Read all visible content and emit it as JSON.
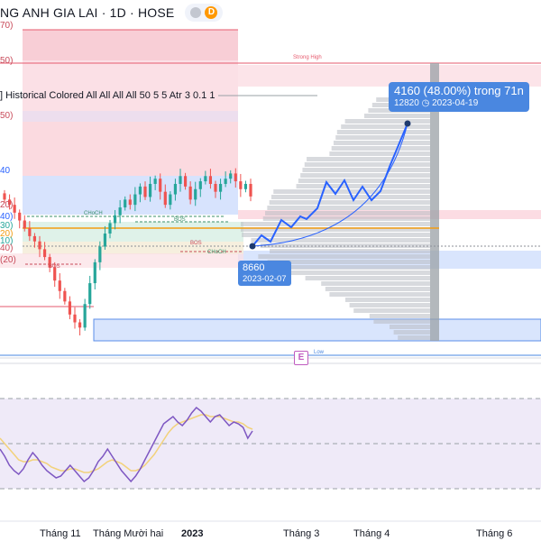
{
  "header": {
    "title": "NG ANH GIA LAI · 1D · HOSE",
    "badge_letter": "D"
  },
  "indicator": {
    "text": "] Historical Colored All All All All 50 5 5 Atr 3 0.1 1"
  },
  "axis_fragments": {
    "p70": "70)",
    "p50a": "50)",
    "p50b": "50)",
    "p40a": "40",
    "p20a": "20)",
    "p40b": "40)",
    "p30": "30)",
    "p20b": "20)",
    "p10": "10)",
    "p40c": "40)",
    "p20c": "(20)"
  },
  "annotations": {
    "strong_high": "Strong High",
    "weak_low": "Low",
    "choch_1": "CHoCH",
    "choch_2": "CHoCH",
    "bos_1": "BOS",
    "bos_2": "BOS",
    "bos_3": "BOS",
    "e_marker": "E"
  },
  "projection": {
    "main": "4160 (48.00%) trong 71n",
    "target_price": "12820",
    "target_date": "2023-04-19",
    "start_price": "8660",
    "start_date": "2023-02-07"
  },
  "time_axis": {
    "labels": [
      "Tháng 11",
      "Tháng Mười hai",
      "2023",
      "Tháng 3",
      "Tháng 4",
      "Tháng 6"
    ]
  },
  "colors": {
    "up": "#26a69a",
    "down": "#ef5350",
    "projection": "#2962ff",
    "label_bg": "#4a87e0",
    "supply_zone": "#f7c5cf",
    "demand_zone": "#c9dafc",
    "rsi_band": "#efeaf8",
    "rsi_line": "#7e57c2",
    "rsi_ma": "#f2d27a",
    "orange_line": "#f39c12"
  },
  "chart_data": [
    {
      "type": "candlestick",
      "title": "",
      "x_labels": [
        "Tháng 11",
        "Tháng Mười hai",
        "2023",
        "Tháng 3",
        "Tháng 4",
        "Tháng 6"
      ],
      "projection": {
        "from": {
          "date": "2023-02-07",
          "price": 8660
        },
        "to": {
          "date": "2023-04-19",
          "price": 12820
        },
        "change": 4160,
        "change_pct": 48.0,
        "bars": 71
      },
      "price_path": [
        8600,
        8500,
        8350,
        8200,
        8050,
        7900,
        7800,
        7650,
        7500,
        7300,
        7050,
        6850,
        6650,
        6400,
        6250,
        6150,
        6600,
        7000,
        7400,
        7700,
        7950,
        8150,
        8300,
        8450,
        8600,
        8500,
        8700,
        8850,
        8650,
        8900,
        9000,
        8750,
        8500,
        8700,
        8900,
        9050,
        8850,
        8600,
        8800,
        8950,
        9050,
        8900,
        8750,
        8900,
        9000,
        9100,
        8950,
        8800,
        8900,
        8660
      ]
    },
    {
      "type": "line",
      "title": "",
      "series": [
        {
          "values": [
            42,
            38,
            33,
            30,
            28,
            31,
            36,
            40,
            37,
            33,
            30,
            28,
            26,
            27,
            30,
            33,
            30,
            27,
            24,
            26,
            30,
            35,
            38,
            42,
            38,
            34,
            30,
            27,
            24,
            27,
            31,
            36,
            41,
            46,
            51,
            56,
            58,
            60,
            57,
            55,
            58,
            62,
            65,
            63,
            60,
            57,
            60,
            61,
            58,
            55,
            57,
            56,
            54,
            48,
            52
          ]
        },
        {
          "values": [
            48,
            45,
            42,
            39,
            36,
            35,
            35,
            36,
            36,
            35,
            34,
            32,
            31,
            30,
            30,
            31,
            31,
            30,
            29,
            29,
            30,
            31,
            33,
            35,
            36,
            35,
            34,
            32,
            30,
            30,
            31,
            33,
            36,
            39,
            43,
            47,
            51,
            54,
            56,
            57,
            58,
            59,
            60,
            61,
            61,
            60,
            60,
            60,
            59,
            58,
            57,
            57,
            56,
            54,
            53
          ]
        }
      ]
    }
  ]
}
